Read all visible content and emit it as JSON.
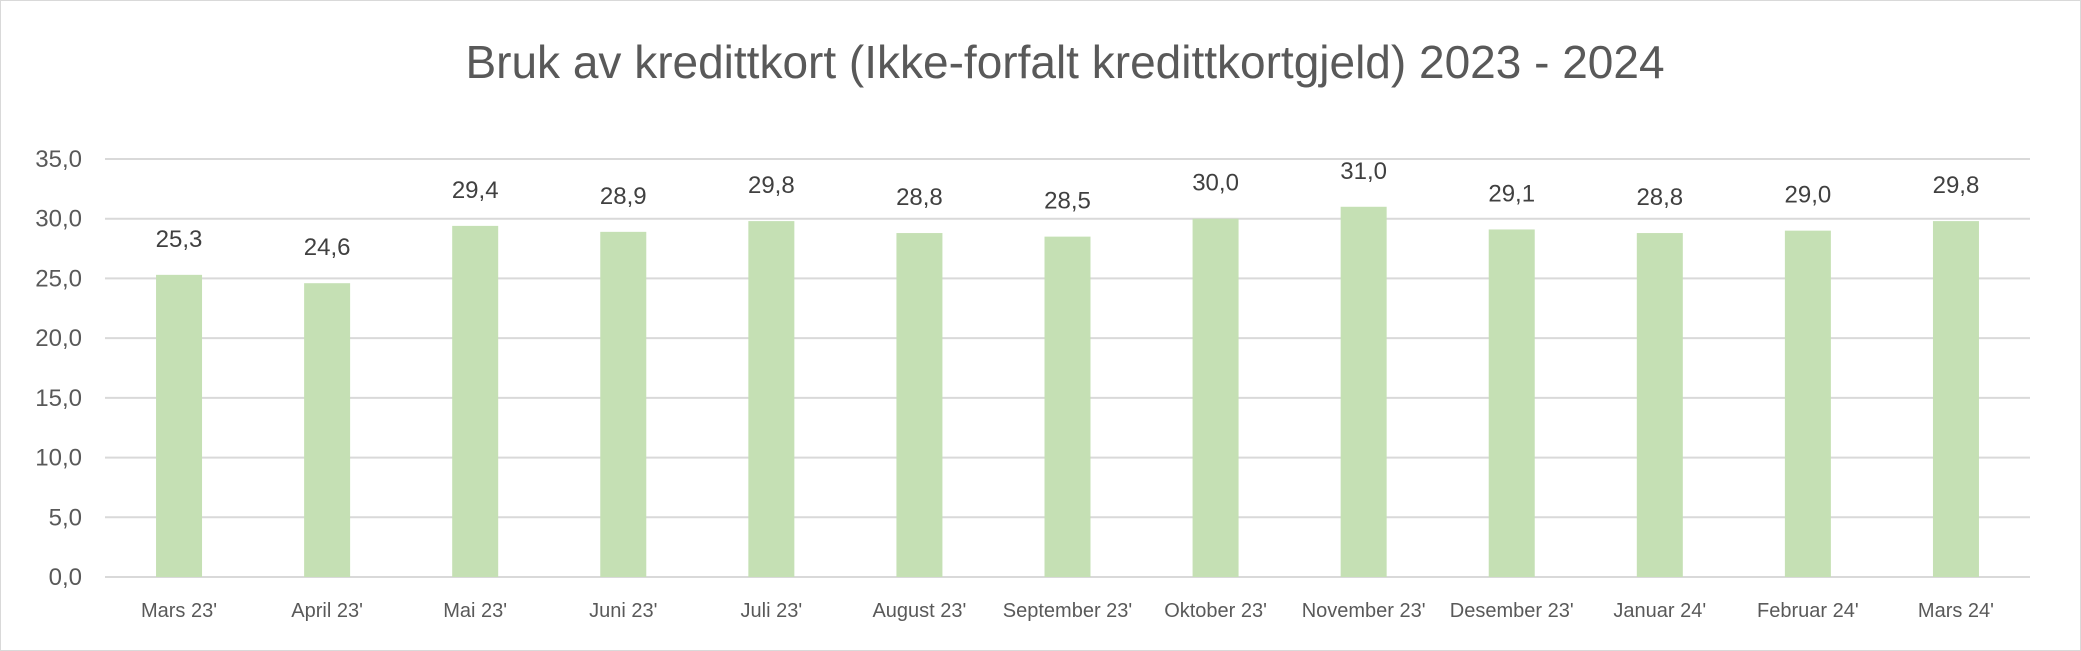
{
  "chart_data": {
    "type": "bar",
    "title": "Bruk av kredittkort (Ikke-forfalt kredittkortgjeld) 2023 - 2024",
    "categories": [
      "Mars 23'",
      "April 23'",
      "Mai 23'",
      "Juni 23'",
      "Juli 23'",
      "August 23'",
      "September 23'",
      "Oktober 23'",
      "November 23'",
      "Desember 23'",
      "Januar 24'",
      "Februar 24'",
      "Mars 24'"
    ],
    "values": [
      25.3,
      24.6,
      29.4,
      28.9,
      29.8,
      28.8,
      28.5,
      30.0,
      31.0,
      29.1,
      28.8,
      29.0,
      29.8
    ],
    "data_labels": [
      "25,3",
      "24,6",
      "29,4",
      "28,9",
      "29,8",
      "28,8",
      "28,5",
      "30,0",
      "31,0",
      "29,1",
      "28,8",
      "29,0",
      "29,8"
    ],
    "ylim": [
      0,
      35
    ],
    "yticks": [
      "0,0",
      "5,0",
      "10,0",
      "15,0",
      "20,0",
      "25,0",
      "30,0",
      "35,0"
    ],
    "xlabel": "",
    "ylabel": "",
    "grid": true,
    "legend": "none",
    "bar_color": "#c5e0b4"
  }
}
